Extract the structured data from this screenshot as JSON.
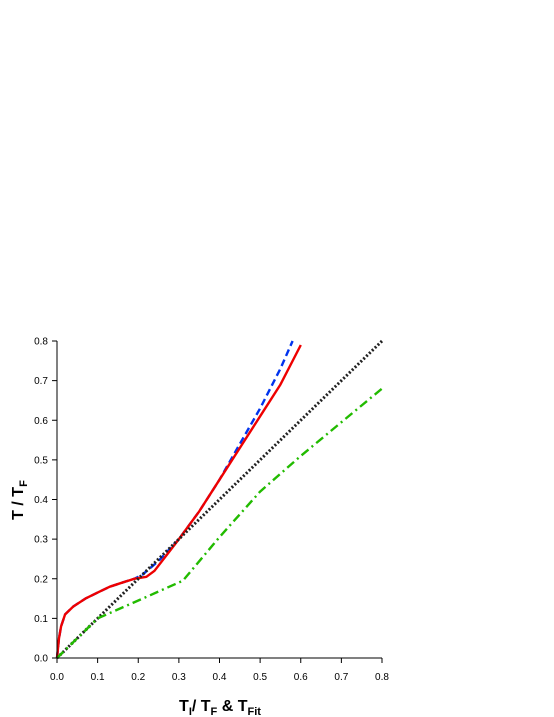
{
  "chart_data": {
    "type": "line",
    "title": "",
    "xlabel": {
      "main": "T",
      "sub1": "I",
      "mid": "/ T",
      "sub2": "F",
      "amp": " &  T",
      "sub3": "Fit"
    },
    "ylabel": {
      "main": "T / T",
      "sub": "F"
    },
    "xlim": [
      0.0,
      0.8
    ],
    "ylim": [
      0.0,
      0.8
    ],
    "xticks": [
      "0.0",
      "0.1",
      "0.2",
      "0.3",
      "0.4",
      "0.5",
      "0.6",
      "0.7",
      "0.8"
    ],
    "yticks": [
      "0.0",
      "0.1",
      "0.2",
      "0.3",
      "0.4",
      "0.5",
      "0.6",
      "0.7",
      "0.8"
    ],
    "grid": false,
    "legend": "none",
    "series": [
      {
        "color": "#0033ee",
        "style": "dashed",
        "x": [
          0.0,
          0.005,
          0.01,
          0.02,
          0.04,
          0.07,
          0.1,
          0.13,
          0.16,
          0.19,
          0.21,
          0.25,
          0.3,
          0.35,
          0.4,
          0.45,
          0.5,
          0.55,
          0.58
        ],
        "y": [
          0.0,
          0.05,
          0.08,
          0.11,
          0.13,
          0.15,
          0.165,
          0.18,
          0.19,
          0.2,
          0.21,
          0.245,
          0.3,
          0.37,
          0.45,
          0.54,
          0.63,
          0.73,
          0.8
        ]
      },
      {
        "color": "#ee0000",
        "style": "solid",
        "x": [
          0.0,
          0.005,
          0.01,
          0.02,
          0.04,
          0.07,
          0.1,
          0.13,
          0.16,
          0.19,
          0.22,
          0.24,
          0.27,
          0.3,
          0.35,
          0.4,
          0.45,
          0.5,
          0.55,
          0.6
        ],
        "y": [
          0.0,
          0.05,
          0.08,
          0.11,
          0.13,
          0.15,
          0.165,
          0.18,
          0.19,
          0.2,
          0.205,
          0.22,
          0.26,
          0.3,
          0.37,
          0.45,
          0.53,
          0.61,
          0.69,
          0.79
        ]
      },
      {
        "color": "#222222",
        "style": "dotted",
        "x": [
          0.0,
          0.8
        ],
        "y": [
          0.0,
          0.8
        ]
      },
      {
        "color": "#22bb00",
        "style": "dash-dot",
        "x": [
          0.0,
          0.1,
          0.2,
          0.31,
          0.4,
          0.5,
          0.6,
          0.7,
          0.8
        ],
        "y": [
          0.0,
          0.1,
          0.145,
          0.195,
          0.305,
          0.42,
          0.51,
          0.595,
          0.68
        ]
      }
    ]
  }
}
